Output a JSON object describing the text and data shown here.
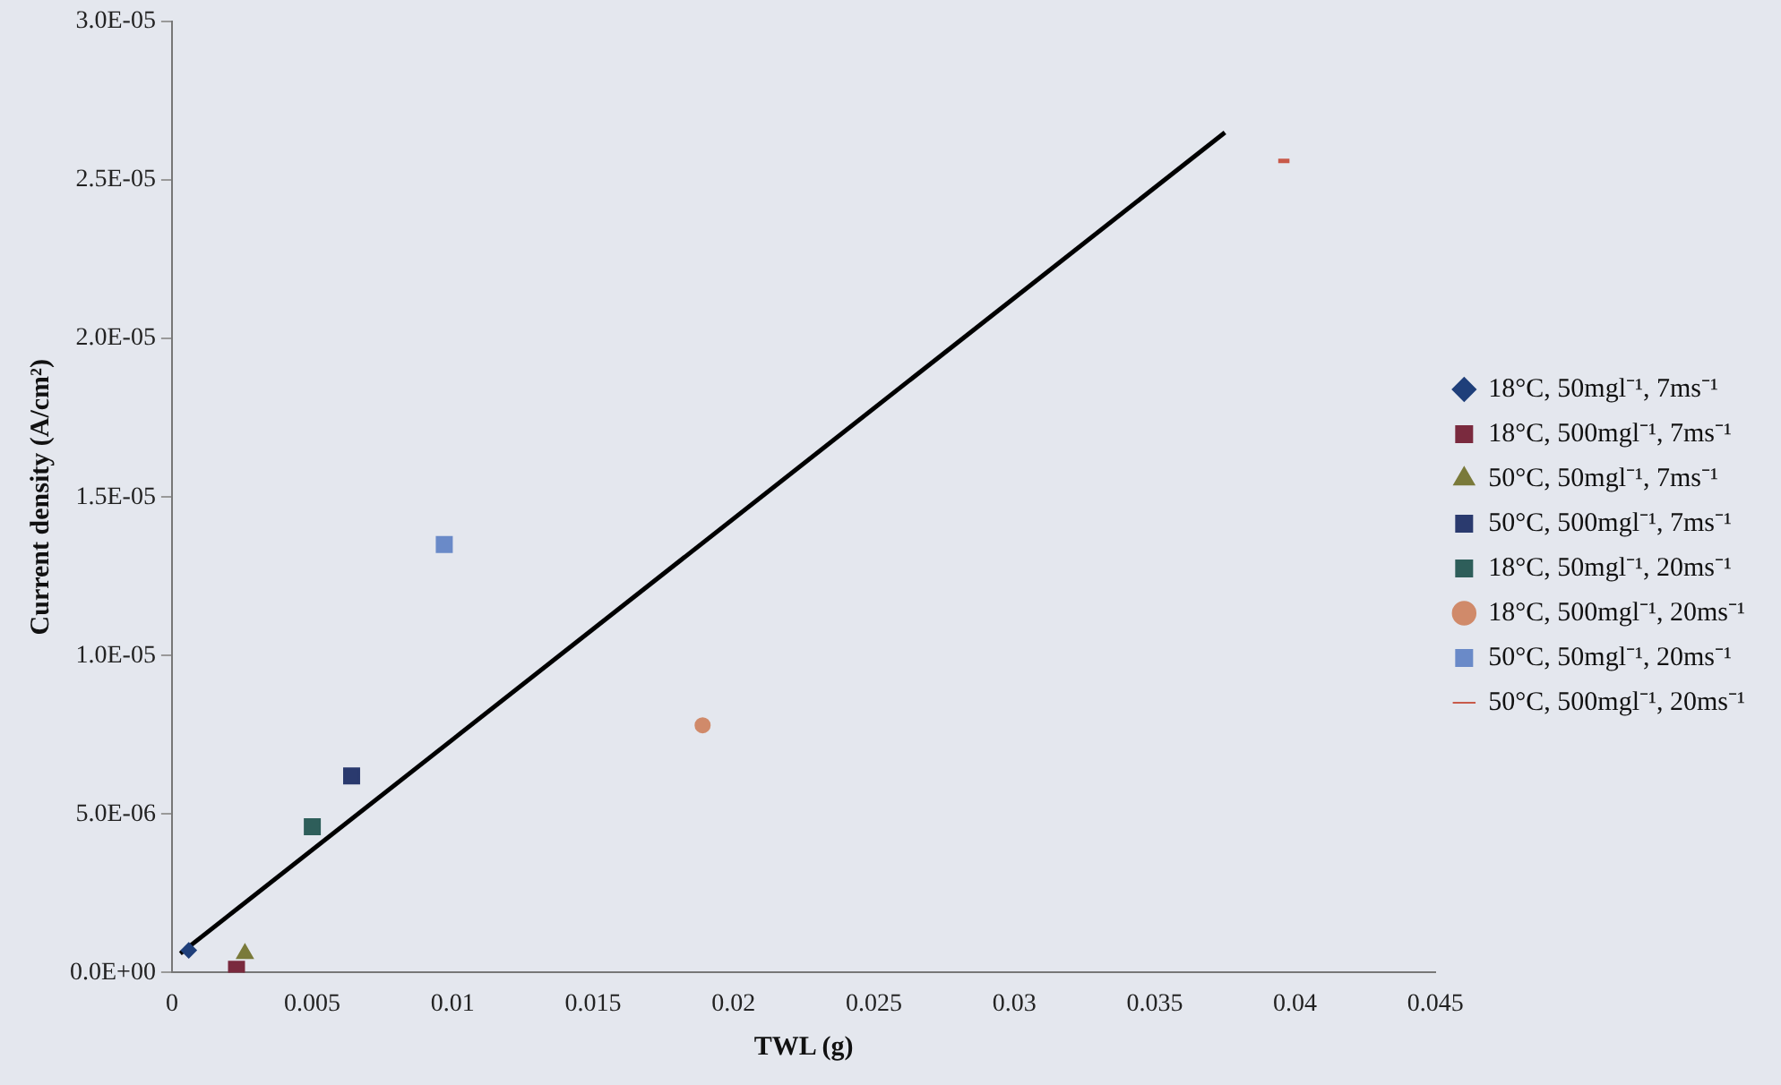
{
  "chart_data": {
    "type": "scatter",
    "xlabel": "TWL (g)",
    "ylabel": "Current density (A/cm²)",
    "xlim": [
      0,
      0.045
    ],
    "xticks": [
      0,
      0.005,
      0.01,
      0.015,
      0.02,
      0.025,
      0.03,
      0.035,
      0.04,
      0.045
    ],
    "ylim": [
      0,
      3e-05
    ],
    "yticks": [
      {
        "value": 0,
        "label": "0.0E+00"
      },
      {
        "value": 5e-06,
        "label": "5.0E-06"
      },
      {
        "value": 1e-05,
        "label": "1.0E-05"
      },
      {
        "value": 1.5e-05,
        "label": "1.5E-05"
      },
      {
        "value": 2e-05,
        "label": "2.0E-05"
      },
      {
        "value": 2.5e-05,
        "label": "2.5E-05"
      },
      {
        "value": 3e-05,
        "label": "3.0E-05"
      }
    ],
    "grid": false,
    "legend": "right",
    "series": [
      {
        "name": "18°C, 50mgl⁻¹, 7ms⁻¹",
        "color": "#1f3f7a",
        "marker": "diamond",
        "x": [
          0.0006
        ],
        "values": [
          7e-07
        ]
      },
      {
        "name": "18°C, 500mgl⁻¹, 7ms⁻¹",
        "color": "#7a2a3e",
        "marker": "square",
        "x": [
          0.0023
        ],
        "values": [
          1e-07
        ]
      },
      {
        "name": "50°C, 50mgl⁻¹, 7ms⁻¹",
        "color": "#7a7a3a",
        "marker": "triangle",
        "x": [
          0.0026
        ],
        "values": [
          6e-07
        ]
      },
      {
        "name": "50°C, 500mgl⁻¹, 7ms⁻¹",
        "color": "#2a3a6e",
        "marker": "square",
        "x": [
          0.0064
        ],
        "values": [
          6.2e-06
        ]
      },
      {
        "name": "18°C, 50mgl⁻¹, 20ms⁻¹",
        "color": "#2e5e5a",
        "marker": "square",
        "x": [
          0.005
        ],
        "values": [
          4.6e-06
        ]
      },
      {
        "name": "18°C, 500mgl⁻¹, 20ms⁻¹",
        "color": "#d08a6a",
        "marker": "circle",
        "x": [
          0.0189
        ],
        "values": [
          7.8e-06
        ]
      },
      {
        "name": "50°C, 50mgl⁻¹, 20ms⁻¹",
        "color": "#6a8ac8",
        "marker": "square",
        "x": [
          0.0097
        ],
        "values": [
          1.35e-05
        ]
      },
      {
        "name": "50°C, 500mgl⁻¹, 20ms⁻¹",
        "color": "#c85a4a",
        "marker": "none",
        "type": "line",
        "x": [
          0.0394,
          0.0398
        ],
        "values": [
          2.56e-05,
          2.56e-05
        ]
      },
      {
        "type": "line",
        "color": "#000000",
        "marker": "none",
        "x": [
          0.0003,
          0.0375
        ],
        "values": [
          6e-07,
          2.65e-05
        ]
      }
    ]
  }
}
